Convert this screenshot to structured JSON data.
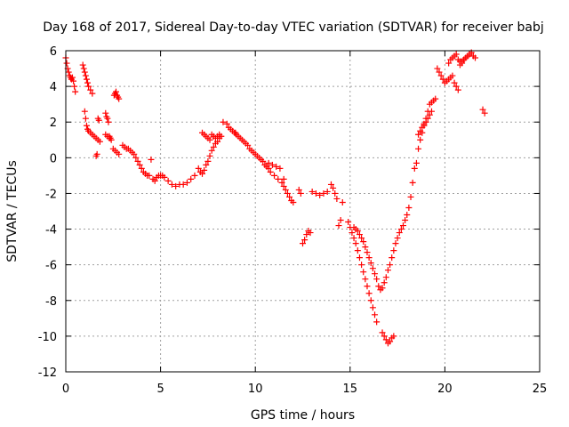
{
  "chart_data": {
    "type": "scatter",
    "title": "Day 168 of 2017, Sidereal Day-to-day VTEC variation (SDTVAR) for receiver babj",
    "xlabel": "GPS time / hours",
    "ylabel": "SDTVAR / TECUs",
    "xlim": [
      0,
      25
    ],
    "ylim": [
      -12,
      6
    ],
    "xticks": [
      0,
      5,
      10,
      15,
      20,
      25
    ],
    "yticks": [
      -12,
      -10,
      -8,
      -6,
      -4,
      -2,
      0,
      2,
      4,
      6
    ],
    "xtick_labels": [
      "0",
      "5",
      "10",
      "15",
      "20",
      "25"
    ],
    "ytick_labels": [
      "-12",
      "-10",
      "-8",
      "-6",
      "-4",
      "-2",
      "0",
      "2",
      "4",
      "6"
    ],
    "grid": true,
    "marker": "plus",
    "color": "#ff0000",
    "series": [
      {
        "x": [
          0.0,
          0.05,
          0.1,
          0.15,
          0.2,
          0.25,
          0.3,
          0.35,
          0.4,
          0.45,
          0.5,
          0.9,
          0.95,
          1.0,
          1.05,
          1.1,
          1.15,
          1.2,
          1.3,
          1.4,
          1.0,
          1.05,
          1.1,
          1.15,
          1.2,
          1.3,
          1.4,
          1.5,
          1.6,
          1.7,
          1.8,
          1.75,
          1.7,
          1.65,
          1.6,
          2.1,
          2.15,
          2.2,
          2.25,
          2.3,
          2.35,
          2.4,
          2.1,
          2.2,
          2.3,
          2.55,
          2.6,
          2.65,
          2.7,
          2.75,
          2.8,
          2.5,
          2.6,
          2.7,
          2.8,
          3.0,
          3.1,
          3.2,
          3.3,
          3.4,
          3.5,
          3.6,
          3.7,
          3.8,
          3.9,
          4.0,
          4.1,
          4.2,
          4.3,
          4.4,
          4.5,
          4.6,
          4.7,
          4.8,
          4.9,
          5.0,
          5.1,
          5.2,
          5.4,
          5.6,
          5.8,
          6.0,
          6.2,
          6.4,
          6.6,
          6.8,
          7.0,
          7.1,
          7.2,
          7.3,
          7.4,
          7.5,
          7.6,
          7.7,
          7.8,
          7.9,
          8.0,
          8.1,
          8.2,
          7.3,
          7.4,
          7.5,
          7.6,
          7.7,
          7.8,
          7.9,
          8.0,
          8.1,
          7.2,
          8.3,
          8.5,
          8.6,
          8.7,
          8.8,
          8.9,
          8.95,
          9.0,
          9.1,
          9.2,
          9.3,
          9.4,
          9.5,
          9.6,
          9.7,
          9.8,
          9.9,
          10.0,
          10.1,
          10.2,
          10.3,
          10.4,
          10.5,
          10.6,
          10.7,
          10.8,
          11.0,
          11.2,
          11.4,
          11.5,
          11.6,
          11.7,
          11.8,
          11.9,
          12.0,
          10.7,
          10.9,
          11.1,
          11.3,
          11.5,
          12.3,
          12.4,
          12.5,
          12.6,
          12.7,
          12.8,
          12.9,
          13.0,
          13.2,
          13.4,
          13.6,
          13.8,
          14.0,
          14.1,
          14.2,
          14.3,
          14.6,
          14.5,
          14.4,
          14.9,
          15.0,
          15.1,
          15.2,
          15.3,
          15.4,
          15.5,
          15.6,
          15.7,
          15.8,
          15.9,
          16.0,
          16.1,
          16.2,
          16.3,
          16.4,
          15.2,
          15.3,
          15.4,
          15.5,
          15.6,
          15.7,
          15.8,
          15.9,
          16.0,
          16.1,
          16.2,
          16.3,
          16.4,
          16.5,
          16.6,
          16.7,
          16.8,
          16.9,
          17.0,
          17.1,
          17.2,
          17.3,
          17.4,
          17.5,
          17.6,
          17.7,
          17.8,
          17.9,
          18.0,
          18.1,
          18.2,
          18.3,
          18.4,
          16.7,
          16.8,
          16.9,
          17.0,
          17.1,
          17.2,
          17.3,
          18.5,
          18.6,
          18.7,
          18.8,
          18.9,
          19.0,
          19.1,
          19.2,
          19.3,
          19.4,
          19.5,
          18.6,
          18.7,
          18.8,
          18.9,
          19.0,
          19.1,
          19.2,
          19.3,
          19.6,
          19.7,
          19.8,
          19.9,
          20.0,
          20.1,
          20.2,
          20.3,
          20.4,
          20.5,
          20.6,
          20.7,
          20.8,
          20.9,
          21.0,
          21.1,
          21.2,
          21.3,
          21.4,
          21.5,
          21.6,
          20.2,
          20.3,
          20.4,
          20.5,
          20.6,
          20.7,
          20.8,
          20.9,
          21.0,
          21.1,
          21.2,
          22.0,
          22.1
        ],
        "y": [
          5.6,
          5.3,
          5.0,
          4.8,
          4.6,
          4.5,
          4.4,
          4.5,
          4.3,
          4.0,
          3.7,
          5.2,
          5.0,
          4.8,
          4.6,
          4.4,
          4.2,
          4.0,
          3.8,
          3.6,
          2.6,
          2.2,
          1.8,
          1.6,
          1.5,
          1.4,
          1.3,
          1.2,
          1.1,
          1.0,
          0.9,
          2.1,
          2.2,
          0.2,
          0.1,
          2.5,
          2.3,
          2.2,
          2.0,
          1.2,
          1.1,
          1.0,
          1.3,
          1.2,
          1.1,
          3.5,
          3.6,
          3.7,
          3.5,
          3.4,
          3.3,
          0.5,
          0.4,
          0.3,
          0.2,
          0.7,
          0.6,
          0.5,
          0.5,
          0.4,
          0.3,
          0.2,
          0.0,
          -0.2,
          -0.4,
          -0.6,
          -0.8,
          -0.9,
          -1.0,
          -1.0,
          -0.1,
          -1.2,
          -1.3,
          -1.1,
          -1.0,
          -1.0,
          -1.0,
          -1.1,
          -1.3,
          -1.5,
          -1.6,
          -1.5,
          -1.5,
          -1.4,
          -1.2,
          -1.0,
          -0.6,
          -0.8,
          -0.9,
          -0.7,
          -0.4,
          -0.2,
          0.1,
          0.4,
          0.6,
          0.8,
          0.9,
          1.1,
          1.2,
          1.3,
          1.2,
          1.1,
          1.0,
          1.3,
          1.2,
          1.1,
          1.2,
          1.3,
          1.4,
          2.0,
          1.9,
          1.7,
          1.6,
          1.5,
          1.4,
          1.4,
          1.3,
          1.2,
          1.1,
          1.0,
          0.9,
          0.8,
          0.7,
          0.5,
          0.4,
          0.3,
          0.2,
          0.1,
          0.0,
          -0.1,
          -0.2,
          -0.4,
          -0.5,
          -0.6,
          -0.8,
          -1.0,
          -1.2,
          -1.4,
          -1.6,
          -1.8,
          -2.0,
          -2.2,
          -2.4,
          -2.5,
          -0.3,
          -0.4,
          -0.5,
          -0.6,
          -1.2,
          -1.8,
          -2.0,
          -4.8,
          -4.6,
          -4.3,
          -4.1,
          -4.2,
          -1.9,
          -2.0,
          -2.1,
          -2.0,
          -1.9,
          -1.5,
          -1.7,
          -2.0,
          -2.3,
          -2.5,
          -3.5,
          -3.8,
          -3.6,
          -3.9,
          -4.2,
          -4.5,
          -4.8,
          -5.2,
          -5.6,
          -6.0,
          -6.4,
          -6.8,
          -7.2,
          -7.6,
          -8.0,
          -8.4,
          -8.8,
          -9.2,
          -3.9,
          -4.0,
          -4.1,
          -4.3,
          -4.5,
          -4.7,
          -5.0,
          -5.3,
          -5.6,
          -5.9,
          -6.2,
          -6.5,
          -6.8,
          -7.2,
          -7.4,
          -7.3,
          -7.0,
          -6.7,
          -6.3,
          -6.0,
          -5.6,
          -5.2,
          -4.8,
          -4.5,
          -4.2,
          -4.0,
          -3.8,
          -3.5,
          -3.2,
          -2.8,
          -2.2,
          -1.4,
          -0.6,
          -9.8,
          -10.0,
          -10.2,
          -10.4,
          -10.3,
          -10.1,
          -10.0,
          -0.3,
          0.5,
          1.0,
          1.4,
          1.8,
          2.2,
          2.6,
          3.0,
          3.1,
          3.2,
          3.3,
          1.3,
          1.5,
          1.7,
          1.9,
          2.0,
          2.2,
          2.4,
          2.6,
          5.0,
          4.8,
          4.6,
          4.4,
          4.2,
          4.3,
          4.4,
          4.5,
          4.6,
          4.2,
          4.0,
          3.8,
          5.2,
          5.4,
          5.5,
          5.6,
          5.7,
          5.8,
          5.9,
          5.7,
          5.6,
          5.3,
          5.5,
          5.6,
          5.7,
          5.8,
          5.5,
          5.4,
          5.3,
          5.5,
          5.6,
          5.7,
          2.7,
          2.5
        ]
      }
    ]
  }
}
